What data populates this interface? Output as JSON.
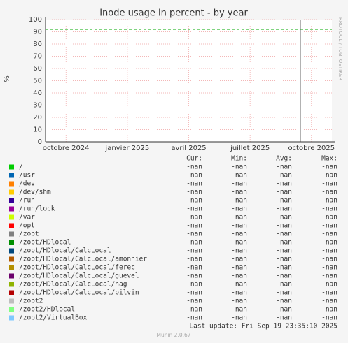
{
  "chart_data": {
    "type": "line",
    "title": "Inode usage in percent - by year",
    "ylabel": "%",
    "side_note": "RRDTOOL / TOBI OETIKER",
    "xlim": [
      "2024-09",
      "2025-11"
    ],
    "xticks": [
      {
        "value": "2024-10",
        "label": "octobre 2024"
      },
      {
        "value": "2025-01",
        "label": "janvier 2025"
      },
      {
        "value": "2025-04",
        "label": "avril 2025"
      },
      {
        "value": "2025-07",
        "label": "juillet 2025"
      },
      {
        "value": "2025-10",
        "label": "octobre 2025"
      }
    ],
    "ylim": [
      0,
      100
    ],
    "yticks": [
      0,
      10,
      20,
      30,
      40,
      50,
      60,
      70,
      80,
      90,
      100
    ],
    "grid": true,
    "hlines": [
      {
        "value": 92,
        "color": "#00aa00"
      }
    ],
    "columns": [
      "Cur:",
      "Min:",
      "Avg:",
      "Max:"
    ],
    "series": [
      {
        "name": "/",
        "color": "#00cc00",
        "stats": [
          "-nan",
          "-nan",
          "-nan",
          "-nan"
        ]
      },
      {
        "name": "/usr",
        "color": "#0066b3",
        "stats": [
          "-nan",
          "-nan",
          "-nan",
          "-nan"
        ]
      },
      {
        "name": "/dev",
        "color": "#ff8000",
        "stats": [
          "-nan",
          "-nan",
          "-nan",
          "-nan"
        ]
      },
      {
        "name": "/dev/shm",
        "color": "#ffcc00",
        "stats": [
          "-nan",
          "-nan",
          "-nan",
          "-nan"
        ]
      },
      {
        "name": "/run",
        "color": "#330099",
        "stats": [
          "-nan",
          "-nan",
          "-nan",
          "-nan"
        ]
      },
      {
        "name": "/run/lock",
        "color": "#990099",
        "stats": [
          "-nan",
          "-nan",
          "-nan",
          "-nan"
        ]
      },
      {
        "name": "/var",
        "color": "#ccff00",
        "stats": [
          "-nan",
          "-nan",
          "-nan",
          "-nan"
        ]
      },
      {
        "name": "/opt",
        "color": "#ff0000",
        "stats": [
          "-nan",
          "-nan",
          "-nan",
          "-nan"
        ]
      },
      {
        "name": "/zopt",
        "color": "#808080",
        "stats": [
          "-nan",
          "-nan",
          "-nan",
          "-nan"
        ]
      },
      {
        "name": "/zopt/HDlocal",
        "color": "#008f00",
        "stats": [
          "-nan",
          "-nan",
          "-nan",
          "-nan"
        ]
      },
      {
        "name": "/zopt/HDlocal/CalcLocal",
        "color": "#00487d",
        "stats": [
          "-nan",
          "-nan",
          "-nan",
          "-nan"
        ]
      },
      {
        "name": "/zopt/HDlocal/CalcLocal/amonnier",
        "color": "#b35a00",
        "stats": [
          "-nan",
          "-nan",
          "-nan",
          "-nan"
        ]
      },
      {
        "name": "/zopt/HDlocal/CalcLocal/ferec",
        "color": "#b38f00",
        "stats": [
          "-nan",
          "-nan",
          "-nan",
          "-nan"
        ]
      },
      {
        "name": "/zopt/HDlocal/CalcLocal/guevel",
        "color": "#6b006b",
        "stats": [
          "-nan",
          "-nan",
          "-nan",
          "-nan"
        ]
      },
      {
        "name": "/zopt/HDlocal/CalcLocal/hag",
        "color": "#8fb300",
        "stats": [
          "-nan",
          "-nan",
          "-nan",
          "-nan"
        ]
      },
      {
        "name": "/zopt/HDlocal/CalcLocal/pilvin",
        "color": "#b30000",
        "stats": [
          "-nan",
          "-nan",
          "-nan",
          "-nan"
        ]
      },
      {
        "name": "/zopt2",
        "color": "#bebebe",
        "stats": [
          "-nan",
          "-nan",
          "-nan",
          "-nan"
        ]
      },
      {
        "name": "/zopt2/HDlocal",
        "color": "#80ff80",
        "stats": [
          "-nan",
          "-nan",
          "-nan",
          "-nan"
        ]
      },
      {
        "name": "/zopt2/VirtualBox",
        "color": "#80c9ff",
        "stats": [
          "-nan",
          "-nan",
          "-nan",
          "-nan"
        ]
      }
    ],
    "last_update": "Last update: Fri Sep 19 23:35:10 2025",
    "footer": "Munin 2.0.67"
  }
}
